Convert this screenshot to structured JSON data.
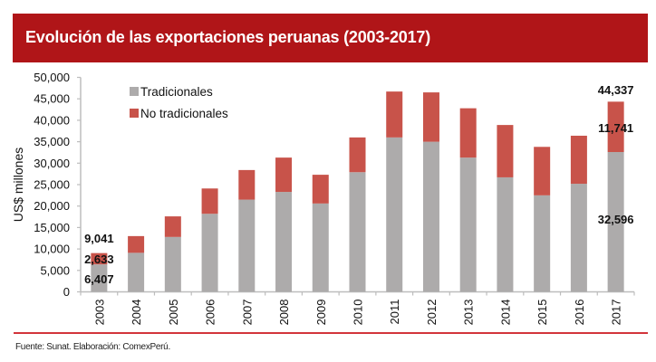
{
  "header": {
    "title": "Evolución de las exportaciones peruanas (2003-2017)"
  },
  "footer": {
    "source": "Fuente: Sunat. Elaboración: ComexPerú."
  },
  "colors": {
    "header_bg": "#B01518",
    "tradicionales": "#ADABAB",
    "no_tradicionales": "#C8534A",
    "rule": "#D2343B"
  },
  "chart_data": {
    "type": "bar",
    "stacked": true,
    "title": "Evolución de las exportaciones peruanas (2003-2017)",
    "xlabel": "",
    "ylabel": "US$ millones",
    "ylim": [
      0,
      50000
    ],
    "yticks": [
      0,
      5000,
      10000,
      15000,
      20000,
      25000,
      30000,
      35000,
      40000,
      45000,
      50000
    ],
    "ytick_labels": [
      "0",
      "5,000",
      "10,000",
      "15,000",
      "20,000",
      "25,000",
      "30,000",
      "35,000",
      "40,000",
      "45,000",
      "50,000"
    ],
    "grid": false,
    "legend_position": "top-left",
    "categories": [
      "2003",
      "2004",
      "2005",
      "2006",
      "2007",
      "2008",
      "2009",
      "2010",
      "2011",
      "2012",
      "2013",
      "2014",
      "2015",
      "2016",
      "2017"
    ],
    "series": [
      {
        "name": "Tradicionales",
        "values": [
          6407,
          9100,
          12800,
          18200,
          21500,
          23300,
          20600,
          27900,
          36000,
          35000,
          31300,
          26700,
          22500,
          25200,
          32596
        ]
      },
      {
        "name": "No tradicionales",
        "values": [
          2633,
          3900,
          4800,
          5900,
          6900,
          8000,
          6700,
          8100,
          10700,
          11500,
          11500,
          12200,
          11300,
          11200,
          11741
        ]
      }
    ],
    "data_labels": [
      {
        "category": "2003",
        "series": "Total",
        "text": "9,041"
      },
      {
        "category": "2003",
        "series": "No tradicionales",
        "text": "2,633"
      },
      {
        "category": "2003",
        "series": "Tradicionales",
        "text": "6,407"
      },
      {
        "category": "2017",
        "series": "Total",
        "text": "44,337"
      },
      {
        "category": "2017",
        "series": "No tradicionales",
        "text": "11,741"
      },
      {
        "category": "2017",
        "series": "Tradicionales",
        "text": "32,596"
      }
    ]
  }
}
